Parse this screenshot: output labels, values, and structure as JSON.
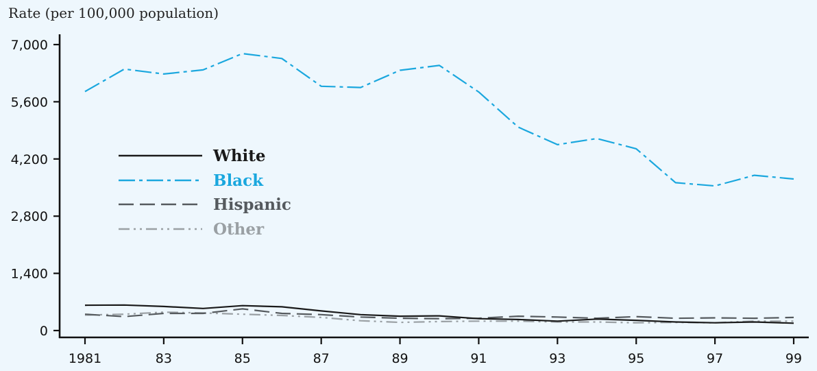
{
  "chart_data": {
    "type": "line",
    "ylabel": "Rate (per 100,000 population)",
    "xlabel": "",
    "x": [
      1981,
      1982,
      1983,
      1984,
      1985,
      1986,
      1987,
      1988,
      1989,
      1990,
      1991,
      1992,
      1993,
      1994,
      1995,
      1996,
      1997,
      1998,
      1999
    ],
    "x_tick_values": [
      1981,
      1983,
      1985,
      1987,
      1989,
      1991,
      1993,
      1995,
      1997,
      1999
    ],
    "x_tick_labels": [
      "1981",
      "83",
      "85",
      "87",
      "89",
      "91",
      "93",
      "95",
      "97",
      "99"
    ],
    "y_tick_values": [
      0,
      1400,
      2800,
      4200,
      5600,
      7000
    ],
    "y_tick_labels": [
      "0",
      "1,400",
      "2,800",
      "4,200",
      "5,600",
      "7,000"
    ],
    "xlim": [
      1981,
      1999
    ],
    "ylim": [
      0,
      7000
    ],
    "grid": false,
    "legend": "center-left",
    "series": [
      {
        "name": "White",
        "color": "#1a1a1a",
        "style": "solid",
        "values": [
          620,
          625,
          590,
          540,
          610,
          580,
          480,
          390,
          350,
          360,
          290,
          270,
          230,
          280,
          250,
          210,
          190,
          210,
          180
        ]
      },
      {
        "name": "Black",
        "color": "#1aa7de",
        "style": "dash-dot",
        "values": [
          5850,
          6400,
          6280,
          6380,
          6780,
          6660,
          5980,
          5950,
          6370,
          6490,
          5840,
          4980,
          4550,
          4700,
          4450,
          3620,
          3540,
          3800,
          3710
        ]
      },
      {
        "name": "Hispanic",
        "color": "#555a5e",
        "style": "long-dash",
        "values": [
          400,
          340,
          420,
          420,
          530,
          420,
          390,
          330,
          300,
          290,
          300,
          350,
          330,
          300,
          340,
          300,
          310,
          300,
          320
        ]
      },
      {
        "name": "Other",
        "color": "#9aa0a4",
        "style": "dash-dot-dot",
        "values": [
          380,
          400,
          450,
          430,
          400,
          370,
          320,
          240,
          200,
          220,
          230,
          230,
          210,
          210,
          190,
          200,
          190,
          230,
          230
        ]
      }
    ]
  }
}
